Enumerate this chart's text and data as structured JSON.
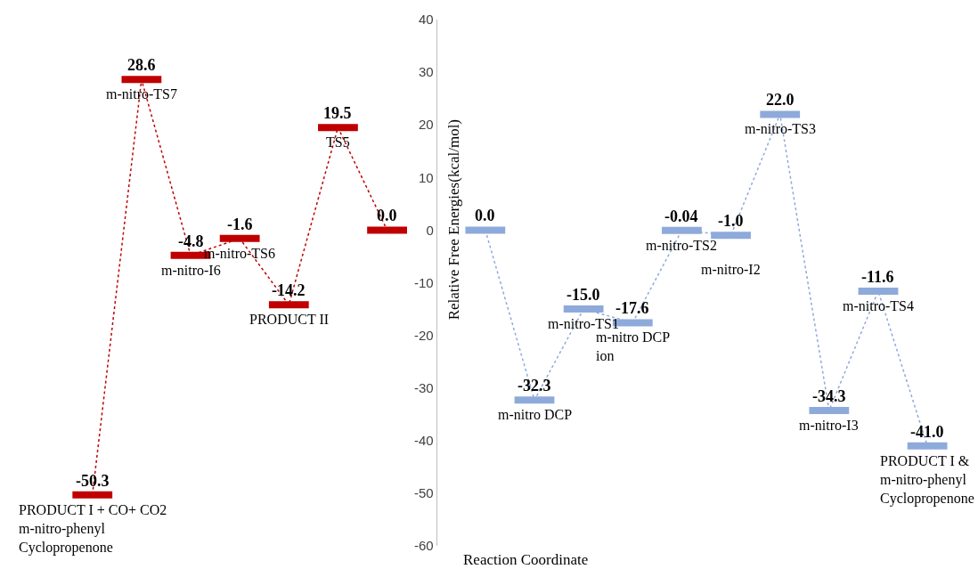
{
  "chart_data": {
    "type": "line",
    "xlabel": "Reaction Coordinate",
    "ylabel": "Relative Free Energies(kcal/mol)",
    "categories": [
      null,
      null,
      null,
      null,
      null,
      null,
      null,
      null,
      null,
      null,
      null,
      null,
      null,
      null,
      null,
      null,
      null,
      null
    ],
    "series": [
      {
        "color": "#c00000",
        "values": [
          -50.3,
          28.6,
          -4.8,
          -1.6,
          -14.2,
          19.5,
          0.0,
          null,
          null,
          null,
          null,
          null,
          null,
          null,
          null,
          null,
          null,
          null
        ],
        "value_labels": [
          "-50.3",
          "28.6",
          "-4.8",
          "-1.6",
          "-14.2",
          "19.5",
          "0.0",
          null,
          null,
          null,
          null,
          null,
          null,
          null,
          null,
          null,
          null,
          null
        ]
      },
      {
        "color": "#8eaadb",
        "values": [
          null,
          null,
          null,
          null,
          null,
          null,
          null,
          null,
          0.0,
          -32.3,
          -15.0,
          -17.6,
          -0.04,
          -1.0,
          22.0,
          -34.3,
          -11.6,
          -41.0
        ],
        "value_labels": [
          null,
          null,
          null,
          null,
          null,
          null,
          null,
          null,
          "0.0",
          "-32.3",
          "-15.0",
          "-17.6",
          "-0.04",
          "-1.0",
          "22.0",
          "-34.3",
          "-11.6",
          "-41.0"
        ]
      }
    ],
    "annotations": [
      {
        "text": "PRODUCT I + CO+ CO2\nm-nitro-phenyl\nCyclopropenone",
        "y": -50.3
      },
      {
        "text": "m-nitro-TS7",
        "y": 28.6
      },
      {
        "text": "m-nitro-I6",
        "y": -4.8
      },
      {
        "text": "m-nitro-TS6",
        "y": -1.6
      },
      {
        "text": "PRODUCT II",
        "y": -14.2
      },
      {
        "text": "TS5",
        "y": 19.5
      },
      {
        "text": "m-nitro DCP",
        "y": -32.3
      },
      {
        "text": "m-nitro-TS1",
        "y": -15.0
      },
      {
        "text": "m-nitro DCP\nion",
        "y": -17.6
      },
      {
        "text": "m-nitro-TS2",
        "y": -0.04
      },
      {
        "text": "m-nitro-I2",
        "y": -1.0
      },
      {
        "text": "m-nitro-TS3",
        "y": 22.0
      },
      {
        "text": "m-nitro-I3",
        "y": -34.3
      },
      {
        "text": "m-nitro-TS4",
        "y": -11.6
      },
      {
        "text": "PRODUCT I &\nm-nitro-phenyl\nCyclopropenone",
        "y": -41.0
      }
    ],
    "ylim": [
      -60,
      40
    ],
    "yticks": [
      -60,
      -50,
      -40,
      -30,
      -20,
      -10,
      0,
      10,
      20,
      30,
      40
    ],
    "grid": false,
    "line_style": "dotted"
  }
}
